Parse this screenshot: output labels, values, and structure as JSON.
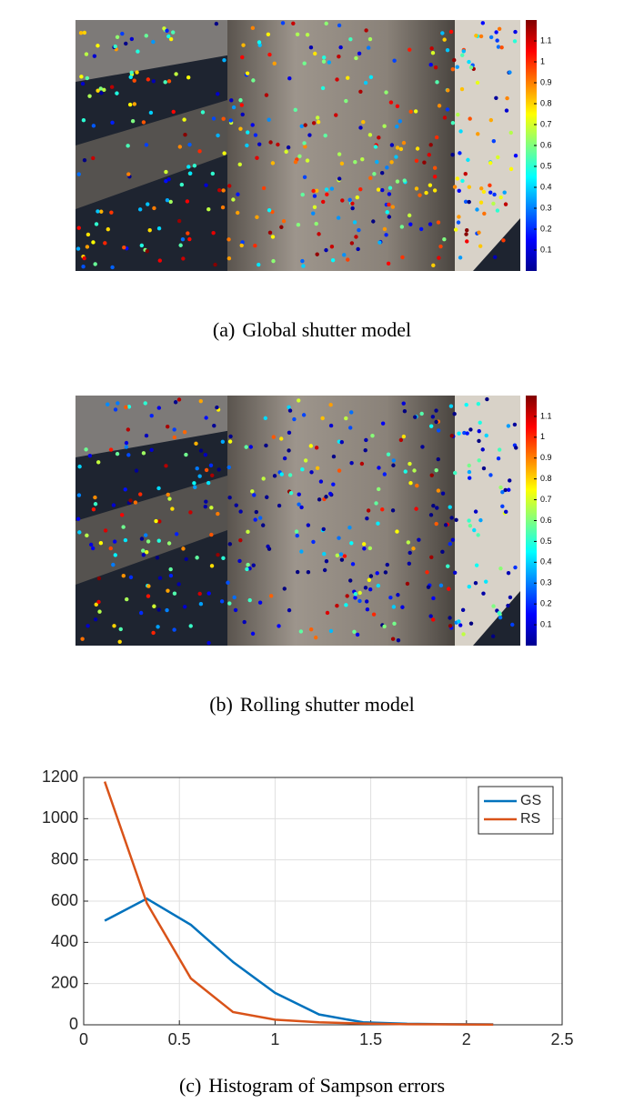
{
  "figure_a": {
    "label": "(a)",
    "caption": "Global shutter model",
    "colorbar": {
      "lim": [
        0,
        1.2
      ],
      "ticks": [
        0.1,
        0.2,
        0.3,
        0.4,
        0.5,
        0.6,
        0.7,
        0.8,
        0.9,
        1,
        1.1
      ]
    }
  },
  "figure_b": {
    "label": "(b)",
    "caption": "Rolling shutter model",
    "colorbar": {
      "lim": [
        0,
        1.2
      ],
      "ticks": [
        0.1,
        0.2,
        0.3,
        0.4,
        0.5,
        0.6,
        0.7,
        0.8,
        0.9,
        1,
        1.1
      ]
    }
  },
  "figure_c": {
    "label": "(c)",
    "caption": "Histogram of Sampson errors"
  },
  "chart_data": {
    "type": "line",
    "x": [
      0.11,
      0.33,
      0.56,
      0.78,
      1.0,
      1.23,
      1.46,
      1.69,
      1.91,
      2.14
    ],
    "series": [
      {
        "name": "GS",
        "color": "#0072bd",
        "values": [
          505,
          612,
          485,
          305,
          155,
          50,
          12,
          5,
          3,
          2
        ]
      },
      {
        "name": "RS",
        "color": "#d95319",
        "values": [
          1180,
          590,
          225,
          62,
          25,
          12,
          6,
          3,
          2,
          1
        ]
      }
    ],
    "xlim": [
      0,
      2.5
    ],
    "xticks": [
      0,
      0.5,
      1,
      1.5,
      2,
      2.5
    ],
    "ylim": [
      0,
      1200
    ],
    "yticks": [
      0,
      200,
      400,
      600,
      800,
      1000,
      1200
    ],
    "grid": true,
    "legend": "top-right"
  }
}
